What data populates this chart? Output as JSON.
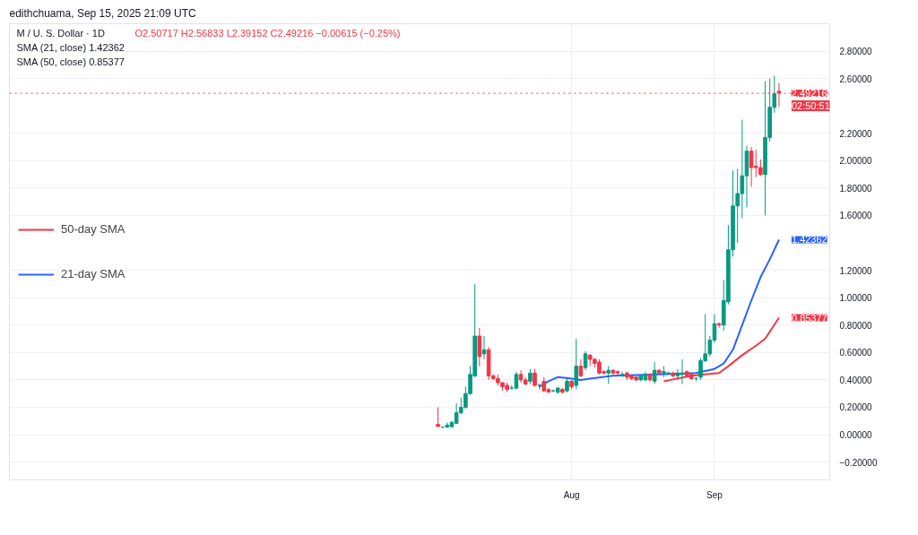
{
  "chart_data": {
    "type": "candlestick",
    "title": "M / U. S. Dollar · 1D",
    "subtitle": "O2.50717  H2.56833  L2.39152  C2.49216  −0.00615 (−0.25%)",
    "annotations": [
      "edithchuama, Sep 15, 2025 21:09 UTC",
      "SMA (21, close)  1.42362",
      "SMA (50, close)  0.85377",
      {
        "text": "02:50:51",
        "x": "2025-09-15",
        "y": 2.49216
      },
      {
        "text": "1.42362",
        "x": "2025-09-15",
        "y": 1.42362
      },
      {
        "text": "0.85377",
        "x": "2025-09-15",
        "y": 0.85377
      }
    ],
    "x": [
      "2025-07-03",
      "2025-07-04",
      "2025-07-05",
      "2025-07-06",
      "2025-07-07",
      "2025-07-08",
      "2025-07-09",
      "2025-07-10",
      "2025-07-11",
      "2025-07-12",
      "2025-07-13",
      "2025-07-14",
      "2025-07-15",
      "2025-07-16",
      "2025-07-17",
      "2025-07-18",
      "2025-07-19",
      "2025-07-20",
      "2025-07-21",
      "2025-07-22",
      "2025-07-23",
      "2025-07-24",
      "2025-07-25",
      "2025-07-26",
      "2025-07-27",
      "2025-07-28",
      "2025-07-29",
      "2025-07-30",
      "2025-07-31",
      "2025-08-01",
      "2025-08-02",
      "2025-08-03",
      "2025-08-04",
      "2025-08-05",
      "2025-08-06",
      "2025-08-07",
      "2025-08-08",
      "2025-08-09",
      "2025-08-10",
      "2025-08-11",
      "2025-08-12",
      "2025-08-13",
      "2025-08-14",
      "2025-08-15",
      "2025-08-16",
      "2025-08-17",
      "2025-08-18",
      "2025-08-19",
      "2025-08-20",
      "2025-08-21",
      "2025-08-22",
      "2025-08-23",
      "2025-08-24",
      "2025-08-25",
      "2025-08-26",
      "2025-08-27",
      "2025-08-28",
      "2025-08-29",
      "2025-08-30",
      "2025-08-31",
      "2025-09-01",
      "2025-09-02",
      "2025-09-03",
      "2025-09-04",
      "2025-09-05",
      "2025-09-06",
      "2025-09-07",
      "2025-09-08",
      "2025-09-09",
      "2025-09-10",
      "2025-09-11",
      "2025-09-12",
      "2025-09-13",
      "2025-09-14",
      "2025-09-15"
    ],
    "ohlc": [
      [
        0.075,
        0.2,
        0.055,
        0.06
      ],
      [
        0.055,
        0.06,
        0.05,
        0.055
      ],
      [
        0.055,
        0.09,
        0.05,
        0.07
      ],
      [
        0.058,
        0.1,
        0.055,
        0.09
      ],
      [
        0.083,
        0.23,
        0.08,
        0.16
      ],
      [
        0.16,
        0.27,
        0.15,
        0.2
      ],
      [
        0.2,
        0.35,
        0.19,
        0.3
      ],
      [
        0.3,
        0.5,
        0.29,
        0.44
      ],
      [
        0.43,
        1.1,
        0.42,
        0.72
      ],
      [
        0.72,
        0.78,
        0.5,
        0.57
      ],
      [
        0.59,
        0.72,
        0.55,
        0.62
      ],
      [
        0.62,
        0.64,
        0.4,
        0.43
      ],
      [
        0.43,
        0.44,
        0.4,
        0.41
      ],
      [
        0.41,
        0.44,
        0.36,
        0.38
      ],
      [
        0.38,
        0.38,
        0.32,
        0.35
      ],
      [
        0.36,
        0.38,
        0.31,
        0.33
      ],
      [
        0.34,
        0.36,
        0.33,
        0.34
      ],
      [
        0.34,
        0.46,
        0.33,
        0.44
      ],
      [
        0.44,
        0.47,
        0.38,
        0.4
      ],
      [
        0.4,
        0.42,
        0.36,
        0.37
      ],
      [
        0.39,
        0.48,
        0.37,
        0.45
      ],
      [
        0.45,
        0.48,
        0.35,
        0.36
      ],
      [
        0.36,
        0.37,
        0.33,
        0.36
      ],
      [
        0.39,
        0.42,
        0.31,
        0.32
      ],
      [
        0.33,
        0.34,
        0.31,
        0.31
      ],
      [
        0.32,
        0.33,
        0.31,
        0.32
      ],
      [
        0.31,
        0.35,
        0.3,
        0.34
      ],
      [
        0.33,
        0.34,
        0.3,
        0.31
      ],
      [
        0.32,
        0.42,
        0.31,
        0.39
      ],
      [
        0.39,
        0.4,
        0.33,
        0.35
      ],
      [
        0.36,
        0.7,
        0.33,
        0.5
      ],
      [
        0.5,
        0.55,
        0.42,
        0.43
      ],
      [
        0.49,
        0.61,
        0.47,
        0.59
      ],
      [
        0.58,
        0.59,
        0.5,
        0.55
      ],
      [
        0.55,
        0.56,
        0.49,
        0.52
      ],
      [
        0.53,
        0.55,
        0.44,
        0.45
      ],
      [
        0.46,
        0.47,
        0.44,
        0.45
      ],
      [
        0.45,
        0.5,
        0.37,
        0.47
      ],
      [
        0.47,
        0.48,
        0.44,
        0.45
      ],
      [
        0.46,
        0.47,
        0.44,
        0.45
      ],
      [
        0.44,
        0.46,
        0.42,
        0.44
      ],
      [
        0.45,
        0.46,
        0.4,
        0.42
      ],
      [
        0.43,
        0.44,
        0.4,
        0.41
      ],
      [
        0.42,
        0.43,
        0.39,
        0.4
      ],
      [
        0.4,
        0.44,
        0.39,
        0.43
      ],
      [
        0.4,
        0.46,
        0.39,
        0.44
      ],
      [
        0.44,
        0.45,
        0.39,
        0.4
      ],
      [
        0.39,
        0.53,
        0.37,
        0.47
      ],
      [
        0.47,
        0.48,
        0.44,
        0.45
      ],
      [
        0.45,
        0.5,
        0.42,
        0.46
      ],
      [
        0.45,
        0.46,
        0.44,
        0.45
      ],
      [
        0.45,
        0.46,
        0.42,
        0.43
      ],
      [
        0.43,
        0.48,
        0.4,
        0.45
      ],
      [
        0.44,
        0.55,
        0.37,
        0.45
      ],
      [
        0.46,
        0.47,
        0.42,
        0.43
      ],
      [
        0.44,
        0.45,
        0.4,
        0.41
      ],
      [
        0.41,
        0.42,
        0.39,
        0.41
      ],
      [
        0.42,
        0.56,
        0.4,
        0.54
      ],
      [
        0.54,
        0.88,
        0.53,
        0.59
      ],
      [
        0.59,
        0.72,
        0.57,
        0.69
      ],
      [
        0.69,
        0.88,
        0.67,
        0.81
      ],
      [
        0.81,
        0.82,
        0.78,
        0.8
      ],
      [
        0.8,
        1.13,
        0.76,
        0.98
      ],
      [
        0.97,
        1.53,
        0.95,
        1.35
      ],
      [
        1.35,
        1.93,
        1.3,
        1.67
      ],
      [
        1.67,
        1.94,
        1.4,
        1.76
      ],
      [
        1.76,
        2.3,
        1.58,
        1.89
      ],
      [
        1.89,
        2.11,
        1.66,
        2.07
      ],
      [
        2.07,
        2.1,
        1.81,
        1.95
      ],
      [
        1.96,
        2.08,
        1.88,
        1.95
      ],
      [
        1.95,
        2.01,
        1.89,
        1.9
      ],
      [
        1.9,
        2.58,
        1.6,
        2.17
      ],
      [
        2.17,
        2.6,
        2.14,
        2.39
      ],
      [
        2.39,
        2.62,
        2.35,
        2.49
      ],
      [
        2.50717,
        2.56833,
        2.39152,
        2.49216
      ]
    ],
    "colors": [
      "#f23645",
      "#089981",
      "#089981",
      "#089981",
      "#089981",
      "#089981",
      "#089981",
      "#089981",
      "#089981",
      "#f23645",
      "#089981",
      "#f23645",
      "#f23645",
      "#f23645",
      "#f23645",
      "#f23645",
      "#089981",
      "#089981",
      "#f23645",
      "#f23645",
      "#089981",
      "#f23645",
      "#089981",
      "#f23645",
      "#f23645",
      "#089981",
      "#089981",
      "#f23645",
      "#089981",
      "#f23645",
      "#089981",
      "#f23645",
      "#089981",
      "#f23645",
      "#f23645",
      "#f23645",
      "#f23645",
      "#089981",
      "#f23645",
      "#f23645",
      "#089981",
      "#f23645",
      "#f23645",
      "#f23645",
      "#089981",
      "#089981",
      "#f23645",
      "#089981",
      "#f23645",
      "#089981",
      "#089981",
      "#f23645",
      "#089981",
      "#089981",
      "#f23645",
      "#f23645",
      "#089981",
      "#089981",
      "#089981",
      "#089981",
      "#089981",
      "#f23645",
      "#089981",
      "#089981",
      "#089981",
      "#089981",
      "#089981",
      "#089981",
      "#f23645",
      "#f23645",
      "#f23645",
      "#089981",
      "#089981",
      "#089981",
      "#f23645"
    ],
    "series": [
      {
        "name": "50-day SMA",
        "type": "line",
        "color": "#f23645",
        "x": [
          "2025-08-21",
          "2025-08-24",
          "2025-08-27",
          "2025-08-30",
          "2025-09-02",
          "2025-09-04",
          "2025-09-07",
          "2025-09-10",
          "2025-09-12",
          "2025-09-15"
        ],
        "values": [
          0.39,
          0.41,
          0.43,
          0.44,
          0.45,
          0.5,
          0.58,
          0.65,
          0.7,
          0.85377
        ]
      },
      {
        "name": "21-day SMA",
        "type": "line",
        "color": "#2962ff",
        "x": [
          "2025-07-25",
          "2025-07-27",
          "2025-07-29",
          "2025-08-01",
          "2025-08-03",
          "2025-08-05",
          "2025-08-10",
          "2025-08-20",
          "2025-08-28",
          "2025-09-01",
          "2025-09-03",
          "2025-09-05",
          "2025-09-07",
          "2025-09-09",
          "2025-09-11",
          "2025-09-13",
          "2025-09-15"
        ],
        "values": [
          0.35,
          0.39,
          0.42,
          0.41,
          0.4,
          0.41,
          0.43,
          0.44,
          0.45,
          0.48,
          0.52,
          0.62,
          0.8,
          0.98,
          1.15,
          1.28,
          1.42362
        ]
      }
    ],
    "ref_lines": [
      {
        "axis": "y",
        "value": 2.49216,
        "label": "2.49216",
        "color": "#f23645",
        "line_style": "dotted"
      }
    ],
    "xlim": [
      "2025-04-01",
      "2025-09-26"
    ],
    "xticks": [
      {
        "value": "2025-08-01",
        "label": "Aug"
      },
      {
        "value": "2025-09-01",
        "label": "Sep"
      }
    ],
    "ylim": [
      -0.33,
      3.0
    ],
    "yticks": [
      {
        "value": -0.2,
        "label": "−0.20000"
      },
      {
        "value": 0,
        "label": "0.00000"
      },
      {
        "value": 0.2,
        "label": "0.20000"
      },
      {
        "value": 0.4,
        "label": "0.40000"
      },
      {
        "value": 0.6,
        "label": "0.60000"
      },
      {
        "value": 0.8,
        "label": "0.80000"
      },
      {
        "value": 1.0,
        "label": "1.00000"
      },
      {
        "value": 1.2,
        "label": "1.20000"
      },
      {
        "value": 1.6,
        "label": "1.60000"
      },
      {
        "value": 1.8,
        "label": "1.80000"
      },
      {
        "value": 2.0,
        "label": "2.00000"
      },
      {
        "value": 2.2,
        "label": "2.20000"
      },
      {
        "value": 2.6,
        "label": "2.60000"
      },
      {
        "value": 2.8,
        "label": "2.80000"
      }
    ],
    "grid": true,
    "legend": "left"
  }
}
